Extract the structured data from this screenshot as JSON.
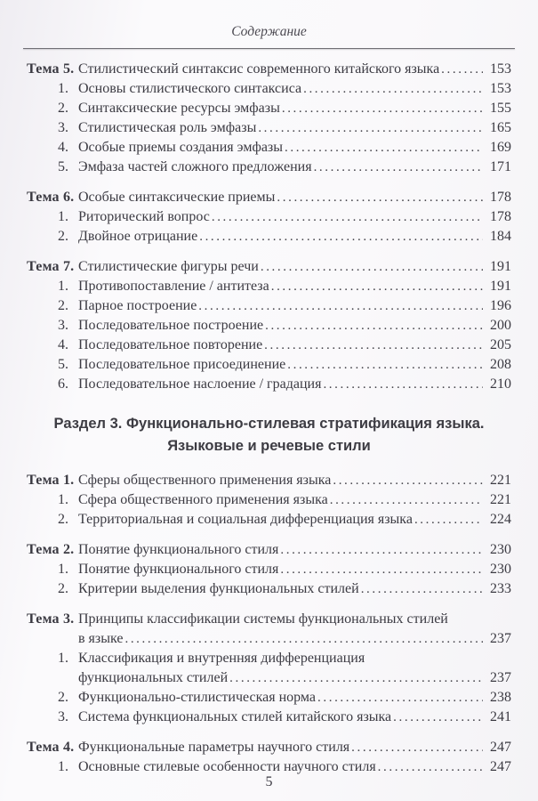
{
  "page": {
    "header": "Содержание",
    "footer_page_number": "5"
  },
  "colors": {
    "text": "#3b3a42",
    "rule": "#6f6e74",
    "paper_light": "#fbfafc",
    "paper_shade": "#efedf2"
  },
  "toc": {
    "blocks": [
      {
        "type": "tema",
        "rows": [
          {
            "kind": "tema",
            "label": "Тема 5.",
            "text": "Стилистический синтаксис современного китайского языка",
            "page": "153"
          },
          {
            "kind": "item",
            "label": "1.",
            "text": "Основы стилистического синтаксиса",
            "page": "153"
          },
          {
            "kind": "item",
            "label": "2.",
            "text": "Синтаксические ресурсы эмфазы",
            "page": "155"
          },
          {
            "kind": "item",
            "label": "3.",
            "text": "Стилистическая роль эмфазы",
            "page": "165"
          },
          {
            "kind": "item",
            "label": "4.",
            "text": "Особые приемы создания эмфазы",
            "page": "169"
          },
          {
            "kind": "item",
            "label": "5.",
            "text": "Эмфаза частей сложного предложения",
            "page": "171"
          }
        ]
      },
      {
        "type": "tema",
        "rows": [
          {
            "kind": "tema",
            "label": "Тема 6.",
            "text": "Особые синтаксические приемы",
            "page": "178"
          },
          {
            "kind": "item",
            "label": "1.",
            "text": "Риторический вопрос",
            "page": "178"
          },
          {
            "kind": "item",
            "label": "2.",
            "text": "Двойное отрицание",
            "page": "184"
          }
        ]
      },
      {
        "type": "tema",
        "rows": [
          {
            "kind": "tema",
            "label": "Тема 7.",
            "text": "Стилистические фигуры речи",
            "page": "191"
          },
          {
            "kind": "item",
            "label": "1.",
            "text": "Противопоставление / антитеза",
            "page": "191"
          },
          {
            "kind": "item",
            "label": "2.",
            "text": "Парное построение",
            "page": "196"
          },
          {
            "kind": "item",
            "label": "3.",
            "text": "Последовательное построение",
            "page": "200"
          },
          {
            "kind": "item",
            "label": "4.",
            "text": "Последовательное повторение",
            "page": "205"
          },
          {
            "kind": "item",
            "label": "5.",
            "text": "Последовательное присоединение",
            "page": "208"
          },
          {
            "kind": "item",
            "label": "6.",
            "text": "Последовательное наслоение / градация",
            "page": "210"
          }
        ]
      },
      {
        "type": "heading",
        "lines": [
          "Раздел 3. Функционально-стилевая стратификация языка.",
          "Языковые и речевые стили"
        ]
      },
      {
        "type": "tema",
        "rows": [
          {
            "kind": "tema",
            "label": "Тема 1.",
            "text": "Сферы общественного применения языка",
            "page": "221"
          },
          {
            "kind": "item",
            "label": "1.",
            "text": "Сфера общественного применения языка",
            "page": "221"
          },
          {
            "kind": "item",
            "label": "2.",
            "text": "Территориальная и социальная дифференциация языка",
            "page": "224"
          }
        ]
      },
      {
        "type": "tema",
        "rows": [
          {
            "kind": "tema",
            "label": "Тема 2.",
            "text": "Понятие функционального стиля",
            "page": "230"
          },
          {
            "kind": "item",
            "label": "1.",
            "text": "Понятие функционального стиля",
            "page": "230"
          },
          {
            "kind": "item",
            "label": "2.",
            "text": "Критерии выделения функциональных стилей",
            "page": "233"
          }
        ]
      },
      {
        "type": "tema",
        "rows": [
          {
            "kind": "tema",
            "label": "Тема 3.",
            "text": "Принципы классификации системы функциональных стилей",
            "page": null
          },
          {
            "kind": "cont",
            "label": "",
            "text": "в языке",
            "page": "237"
          },
          {
            "kind": "item",
            "label": "1.",
            "text": "Классификация и внутренняя дифференциация",
            "page": null
          },
          {
            "kind": "cont",
            "label": "",
            "text": "функциональных стилей",
            "page": "237"
          },
          {
            "kind": "item",
            "label": "2.",
            "text": "Функционально-стилистическая норма",
            "page": "238"
          },
          {
            "kind": "item",
            "label": "3.",
            "text": "Система функциональных стилей китайского языка",
            "page": "241"
          }
        ]
      },
      {
        "type": "tema",
        "rows": [
          {
            "kind": "tema",
            "label": "Тема 4.",
            "text": "Функциональные параметры научного стиля",
            "page": "247"
          },
          {
            "kind": "item",
            "label": "1.",
            "text": "Основные стилевые особенности научного стиля",
            "page": "247"
          }
        ]
      }
    ]
  }
}
